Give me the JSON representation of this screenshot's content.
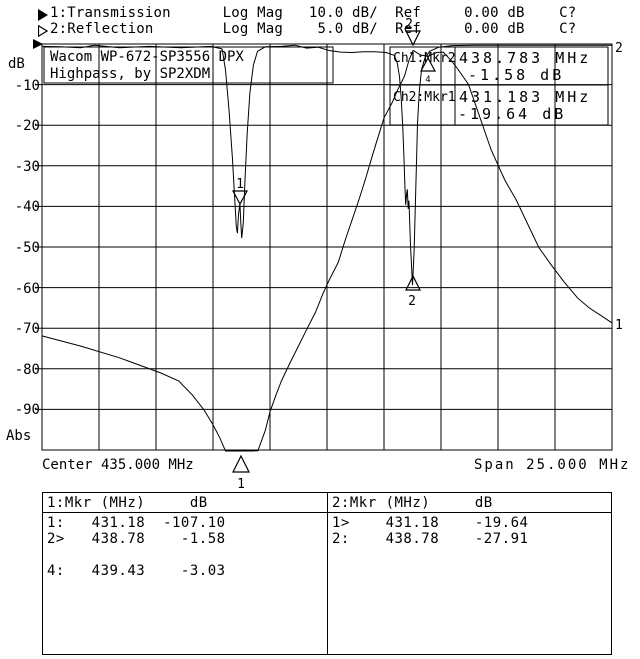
{
  "colors": {
    "foreground": "#000000",
    "background": "#ffffff"
  },
  "header": {
    "ch1": {
      "icon": "filled-right-triangle",
      "text": "1:Transmission      Log Mag   10.0 dB/  Ref     0.00 dB    C?"
    },
    "ch2": {
      "icon": "open-right-triangle",
      "text": "2:Reflection        Log Mag    5.0 dB/  Ref     0.00 dB    C?"
    }
  },
  "y_axis": {
    "unit": "dB",
    "labels": [
      "-10",
      "-20",
      "-30",
      "-40",
      "-50",
      "-60",
      "-70",
      "-80",
      "-90"
    ],
    "bottom_label": "Abs"
  },
  "x_axis": {
    "center_label": "Center 435.000 MHz",
    "span_label": "Span 25.000 MHz"
  },
  "title_box": {
    "line1": "Wacom WP-672-SP3556 DPX",
    "line2": "Highpass, by SP2XDM"
  },
  "marker_info": {
    "rows": [
      {
        "ch": "Ch1:Mkr2",
        "freq": "438.783 MHz",
        "level": "-1.58 dB"
      },
      {
        "ch": "Ch2:Mkr1",
        "freq": "431.183 MHz",
        "level": "-19.64 dB"
      }
    ]
  },
  "trace_labels": {
    "reflection_right": "2",
    "transmission_right": "1"
  },
  "tables": {
    "left": {
      "header": "1:Mkr (MHz)     dB",
      "rows": [
        "1:   431.18  -107.10",
        "2>   438.78    -1.58",
        "",
        "4:   439.43    -3.03"
      ]
    },
    "right": {
      "header": "2:Mkr (MHz)     dB",
      "rows": [
        "1>    431.18    -19.64",
        "2:    438.78    -27.91"
      ]
    }
  },
  "chart_data": {
    "type": "line",
    "title": "Wacom WP-672-SP3556 DPX Highpass, by SP2XDM",
    "x_axis": {
      "center_mhz": 435.0,
      "span_mhz": 25.0,
      "start_mhz": 422.5,
      "stop_mhz": 447.5,
      "divisions": 10
    },
    "y_axis": {
      "ref_db": 0.0,
      "divisions": 10,
      "grid": true
    },
    "series": [
      {
        "name": "transmission",
        "channel": 1,
        "scale_db_per_div": 10.0,
        "ref_db": 0.0,
        "points": [
          [
            422.5,
            -71.9
          ],
          [
            424.2,
            -74.4
          ],
          [
            425.9,
            -77.3
          ],
          [
            427.7,
            -81.0
          ],
          [
            428.5,
            -83.0
          ],
          [
            429.1,
            -86.5
          ],
          [
            429.6,
            -90.1
          ],
          [
            430.0,
            -93.8
          ],
          [
            430.3,
            -97.0
          ],
          [
            430.55,
            -100.5
          ],
          [
            430.7,
            -104.0
          ],
          [
            431.18,
            -107.1
          ],
          [
            431.7,
            -104.0
          ],
          [
            431.97,
            -100.2
          ],
          [
            432.3,
            -95.1
          ],
          [
            432.5,
            -90.6
          ],
          [
            432.76,
            -86.5
          ],
          [
            433.0,
            -83.0
          ],
          [
            433.4,
            -78.3
          ],
          [
            433.7,
            -74.9
          ],
          [
            434.1,
            -70.4
          ],
          [
            434.5,
            -66.0
          ],
          [
            434.8,
            -61.8
          ],
          [
            435.1,
            -58.1
          ],
          [
            435.5,
            -53.7
          ],
          [
            435.8,
            -48.3
          ],
          [
            436.1,
            -43.3
          ],
          [
            436.4,
            -38.4
          ],
          [
            436.7,
            -33.0
          ],
          [
            437.0,
            -27.3
          ],
          [
            437.2,
            -23.6
          ],
          [
            437.5,
            -18.2
          ],
          [
            437.85,
            -14.5
          ],
          [
            438.1,
            -11.3
          ],
          [
            438.4,
            -7.9
          ],
          [
            438.6,
            -3.9
          ],
          [
            438.78,
            -1.58
          ],
          [
            439.1,
            -2.7
          ],
          [
            439.43,
            -3.03
          ],
          [
            439.8,
            -2.1
          ],
          [
            440.1,
            -2.0
          ],
          [
            440.5,
            -4.4
          ],
          [
            440.7,
            -5.9
          ],
          [
            441.2,
            -9.9
          ],
          [
            441.7,
            -18.0
          ],
          [
            442.2,
            -26.1
          ],
          [
            442.8,
            -33.5
          ],
          [
            443.3,
            -38.4
          ],
          [
            443.8,
            -44.3
          ],
          [
            444.3,
            -50.2
          ],
          [
            444.9,
            -54.9
          ],
          [
            445.4,
            -58.6
          ],
          [
            446.0,
            -62.6
          ],
          [
            446.5,
            -65.0
          ],
          [
            447.1,
            -67.2
          ],
          [
            447.5,
            -68.7
          ]
        ]
      },
      {
        "name": "reflection",
        "channel": 2,
        "scale_db_per_div": 5.0,
        "ref_db": 0.0,
        "points": [
          [
            422.5,
            -0.3
          ],
          [
            423.3,
            -0.35
          ],
          [
            424.2,
            -0.45
          ],
          [
            424.8,
            -0.15
          ],
          [
            425.9,
            -0.45
          ],
          [
            427.2,
            -0.3
          ],
          [
            428.6,
            -0.45
          ],
          [
            429.9,
            -0.3
          ],
          [
            430.4,
            -0.6
          ],
          [
            430.55,
            -3.2
          ],
          [
            430.7,
            -8.1
          ],
          [
            430.85,
            -14.0
          ],
          [
            430.95,
            -19.0
          ],
          [
            431.02,
            -22.5
          ],
          [
            431.07,
            -23.3
          ],
          [
            431.12,
            -21.0
          ],
          [
            431.18,
            -19.64
          ],
          [
            431.22,
            -22.0
          ],
          [
            431.26,
            -23.9
          ],
          [
            431.33,
            -22.0
          ],
          [
            431.4,
            -17.0
          ],
          [
            431.5,
            -11.0
          ],
          [
            431.62,
            -6.0
          ],
          [
            431.77,
            -2.6
          ],
          [
            431.95,
            -0.9
          ],
          [
            432.3,
            -0.35
          ],
          [
            433.0,
            -0.3
          ],
          [
            433.6,
            -0.15
          ],
          [
            434.1,
            -0.5
          ],
          [
            434.6,
            -0.4
          ],
          [
            435.1,
            -0.8
          ],
          [
            435.6,
            -1.0
          ],
          [
            436.1,
            -1.05
          ],
          [
            436.6,
            -0.95
          ],
          [
            437.1,
            -0.95
          ],
          [
            437.6,
            -1.05
          ],
          [
            437.95,
            -1.4
          ],
          [
            438.08,
            -2.3
          ],
          [
            438.18,
            -4.0
          ],
          [
            438.25,
            -6.5
          ],
          [
            438.32,
            -10.0
          ],
          [
            438.38,
            -14.5
          ],
          [
            438.42,
            -17.8
          ],
          [
            438.45,
            -19.8
          ],
          [
            438.49,
            -18.5
          ],
          [
            438.52,
            -17.9
          ],
          [
            438.56,
            -20.3
          ],
          [
            438.59,
            -19.3
          ],
          [
            438.62,
            -21.2
          ],
          [
            438.66,
            -24.5
          ],
          [
            438.71,
            -27.5
          ],
          [
            438.75,
            -29.7
          ],
          [
            438.78,
            -27.91
          ],
          [
            438.82,
            -25.5
          ],
          [
            438.87,
            -20.5
          ],
          [
            438.92,
            -15.0
          ],
          [
            438.97,
            -9.8
          ],
          [
            439.05,
            -5.8
          ],
          [
            439.15,
            -3.1
          ],
          [
            439.3,
            -1.7
          ],
          [
            439.5,
            -0.9
          ],
          [
            439.9,
            -0.4
          ],
          [
            440.5,
            -0.2
          ],
          [
            441.5,
            -0.15
          ],
          [
            443.0,
            -0.15
          ],
          [
            444.5,
            -0.15
          ],
          [
            446.0,
            -0.15
          ],
          [
            447.5,
            -0.15
          ]
        ]
      }
    ],
    "markers": [
      {
        "channel": 1,
        "marker": "1",
        "freq_mhz": 431.18,
        "level_db": -107.1
      },
      {
        "channel": 1,
        "marker": "2",
        "freq_mhz": 438.78,
        "level_db": -1.58,
        "active": true
      },
      {
        "channel": 1,
        "marker": "4",
        "freq_mhz": 439.43,
        "level_db": -3.03
      },
      {
        "channel": 2,
        "marker": "1",
        "freq_mhz": 431.18,
        "level_db": -19.64,
        "active": true
      },
      {
        "channel": 2,
        "marker": "2",
        "freq_mhz": 438.78,
        "level_db": -27.91
      }
    ]
  }
}
